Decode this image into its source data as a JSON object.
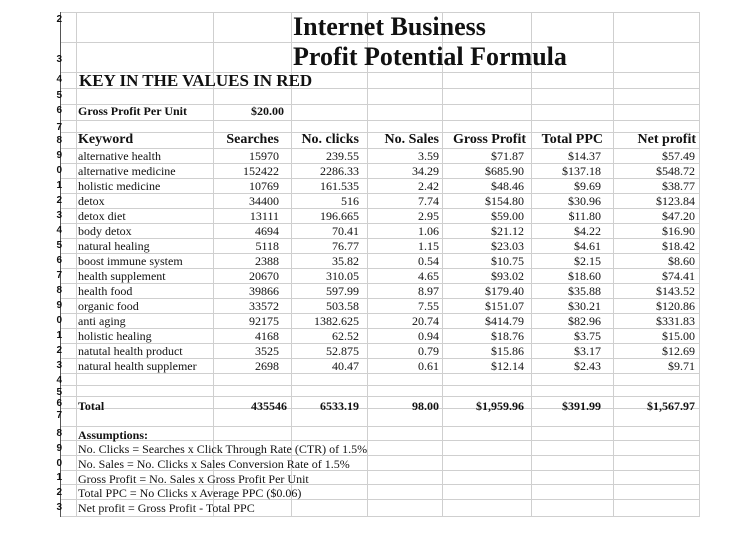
{
  "title_line1": "Internet Business",
  "title_line2": "Profit Potential Formula",
  "key_note": "KEY IN THE VALUES IN RED",
  "gross_profit_label": "Gross Profit Per Unit",
  "gross_profit_value": "$20.00",
  "row_numbers": [
    "2",
    "3",
    "4",
    "5",
    "6",
    "7",
    "8",
    "9",
    "0",
    "1",
    "2",
    "3",
    "4",
    "5",
    "6",
    "7",
    "8",
    "9",
    "0",
    "1",
    "2",
    "3",
    "4",
    "5",
    "6",
    "7",
    "8",
    "9",
    "0",
    "1",
    "2",
    "3"
  ],
  "headers": [
    "Keyword",
    "Searches",
    "No. clicks",
    "No. Sales",
    "Gross Profit",
    "Total PPC",
    "Net profit"
  ],
  "rows": [
    [
      "alternative health",
      "15970",
      "239.55",
      "3.59",
      "$71.87",
      "$14.37",
      "$57.49"
    ],
    [
      "alternative medicine",
      "152422",
      "2286.33",
      "34.29",
      "$685.90",
      "$137.18",
      "$548.72"
    ],
    [
      "holistic medicine",
      "10769",
      "161.535",
      "2.42",
      "$48.46",
      "$9.69",
      "$38.77"
    ],
    [
      "detox",
      "34400",
      "516",
      "7.74",
      "$154.80",
      "$30.96",
      "$123.84"
    ],
    [
      "detox diet",
      "13111",
      "196.665",
      "2.95",
      "$59.00",
      "$11.80",
      "$47.20"
    ],
    [
      "body detox",
      "4694",
      "70.41",
      "1.06",
      "$21.12",
      "$4.22",
      "$16.90"
    ],
    [
      "natural healing",
      "5118",
      "76.77",
      "1.15",
      "$23.03",
      "$4.61",
      "$18.42"
    ],
    [
      "boost immune system",
      "2388",
      "35.82",
      "0.54",
      "$10.75",
      "$2.15",
      "$8.60"
    ],
    [
      "health supplement",
      "20670",
      "310.05",
      "4.65",
      "$93.02",
      "$18.60",
      "$74.41"
    ],
    [
      "health food",
      "39866",
      "597.99",
      "8.97",
      "$179.40",
      "$35.88",
      "$143.52"
    ],
    [
      "organic food",
      "33572",
      "503.58",
      "7.55",
      "$151.07",
      "$30.21",
      "$120.86"
    ],
    [
      "anti aging",
      "92175",
      "1382.625",
      "20.74",
      "$414.79",
      "$82.96",
      "$331.83"
    ],
    [
      "holistic healing",
      "4168",
      "62.52",
      "0.94",
      "$18.76",
      "$3.75",
      "$15.00"
    ],
    [
      "natutal health product",
      "3525",
      "52.875",
      "0.79",
      "$15.86",
      "$3.17",
      "$12.69"
    ],
    [
      "natural health supplemer",
      "2698",
      "40.47",
      "0.61",
      "$12.14",
      "$2.43",
      "$9.71"
    ]
  ],
  "totals": [
    "Total",
    "435546",
    "6533.19",
    "98.00",
    "$1,959.96",
    "$391.99",
    "$1,567.97"
  ],
  "assumptions_title": "Assumptions:",
  "assumptions": [
    "No. Clicks = Searches x Click Through Rate (CTR) of 1.5%",
    "No. Sales = No. Clicks x Sales Conversion Rate of 1.5%",
    "Gross Profit = No. Sales x Gross Profit Per Unit",
    "Total PPC = No Clicks x Average PPC ($0.06)",
    "Net profit = Gross Profit - Total PPC"
  ]
}
